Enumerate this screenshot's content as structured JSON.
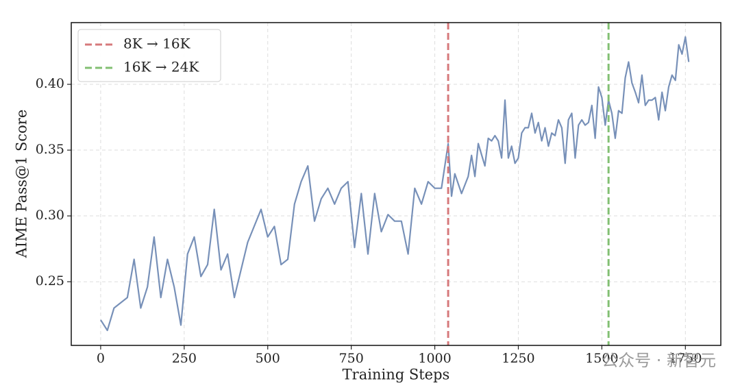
{
  "chart_data": {
    "type": "line",
    "xlabel": "Training Steps",
    "ylabel": "AIME Pass@1 Score",
    "xlim": [
      -88,
      1856
    ],
    "ylim": [
      0.2016,
      0.4469
    ],
    "xticks": [
      0,
      250,
      500,
      750,
      1000,
      1250,
      1500,
      1750
    ],
    "yticks": [
      0.25,
      {
        "value": 0.3,
        "label": "0.30"
      },
      0.35,
      {
        "value": 0.4,
        "label": "0.40"
      }
    ],
    "grid": true,
    "legend": "upper left",
    "x": [
      0,
      20,
      40,
      80,
      100,
      120,
      140,
      160,
      180,
      200,
      220,
      240,
      260,
      280,
      300,
      320,
      340,
      360,
      380,
      400,
      440,
      480,
      500,
      520,
      540,
      560,
      580,
      600,
      620,
      640,
      660,
      680,
      700,
      720,
      740,
      760,
      780,
      800,
      820,
      840,
      860,
      880,
      900,
      920,
      940,
      960,
      980,
      1000,
      1020,
      1040,
      1050,
      1060,
      1080,
      1100,
      1110,
      1120,
      1130,
      1150,
      1160,
      1170,
      1180,
      1190,
      1200,
      1210,
      1220,
      1230,
      1240,
      1250,
      1260,
      1270,
      1280,
      1290,
      1300,
      1310,
      1320,
      1330,
      1340,
      1350,
      1360,
      1370,
      1380,
      1390,
      1400,
      1410,
      1420,
      1430,
      1440,
      1450,
      1460,
      1470,
      1480,
      1490,
      1500,
      1510,
      1520,
      1530,
      1540,
      1550,
      1560,
      1570,
      1580,
      1590,
      1600,
      1610,
      1620,
      1630,
      1640,
      1650,
      1660,
      1670,
      1680,
      1690,
      1700,
      1710,
      1720,
      1730,
      1740,
      1750,
      1760
    ],
    "series": [
      {
        "color": "#7790b8",
        "values": [
          0.221,
          0.213,
          0.23,
          0.238,
          0.267,
          0.23,
          0.246,
          0.284,
          0.238,
          0.267,
          0.246,
          0.217,
          0.271,
          0.284,
          0.254,
          0.263,
          0.305,
          0.259,
          0.271,
          0.238,
          0.28,
          0.305,
          0.284,
          0.292,
          0.263,
          0.267,
          0.309,
          0.326,
          0.338,
          0.296,
          0.313,
          0.321,
          0.309,
          0.321,
          0.326,
          0.276,
          0.317,
          0.271,
          0.317,
          0.288,
          0.301,
          0.296,
          0.296,
          0.271,
          0.321,
          0.309,
          0.326,
          0.321,
          0.321,
          0.355,
          0.315,
          0.332,
          0.317,
          0.33,
          0.346,
          0.33,
          0.355,
          0.338,
          0.359,
          0.357,
          0.361,
          0.357,
          0.344,
          0.388,
          0.344,
          0.353,
          0.34,
          0.344,
          0.363,
          0.367,
          0.367,
          0.378,
          0.363,
          0.371,
          0.357,
          0.367,
          0.353,
          0.363,
          0.361,
          0.373,
          0.367,
          0.34,
          0.373,
          0.378,
          0.344,
          0.369,
          0.373,
          0.369,
          0.371,
          0.384,
          0.359,
          0.398,
          0.39,
          0.369,
          0.388,
          0.378,
          0.359,
          0.38,
          0.378,
          0.405,
          0.417,
          0.401,
          0.394,
          0.386,
          0.407,
          0.384,
          0.388,
          0.388,
          0.39,
          0.373,
          0.394,
          0.38,
          0.398,
          0.407,
          0.403,
          0.43,
          0.423,
          0.436,
          0.417
        ]
      }
    ],
    "vlines": [
      {
        "name": "8K → 16K",
        "value": 1040,
        "color": "#d6797b"
      },
      {
        "name": "16K → 24K",
        "value": 1520,
        "color": "#82bf72"
      }
    ],
    "watermark": "公众号 · 新智元"
  }
}
